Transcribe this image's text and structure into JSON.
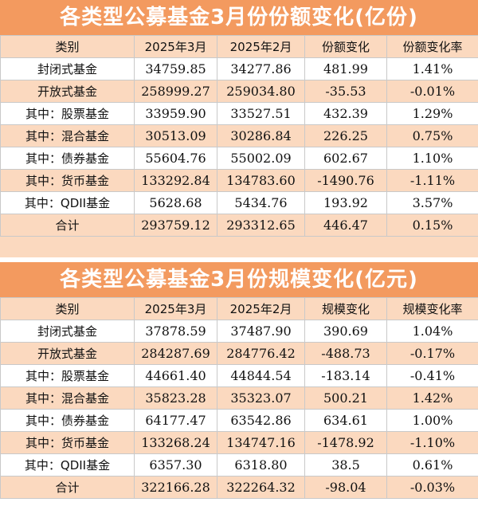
{
  "share": {
    "title": "各类型公募基金3月份份额变化(亿份)",
    "headers": [
      "类别",
      "2025年3月",
      "2025年2月",
      "份额变化",
      "份额变化率"
    ],
    "rows": [
      [
        "封闭式基金",
        "34759.85",
        "34277.86",
        "481.99",
        "1.41%"
      ],
      [
        "开放式基金",
        "258999.27",
        "259034.80",
        "-35.53",
        "-0.01%"
      ],
      [
        "其中：股票基金",
        "33959.90",
        "33527.51",
        "432.39",
        "1.29%"
      ],
      [
        "其中：混合基金",
        "30513.09",
        "30286.84",
        "226.25",
        "0.75%"
      ],
      [
        "其中：债券基金",
        "55604.76",
        "55002.09",
        "602.67",
        "1.10%"
      ],
      [
        "其中：货币基金",
        "133292.84",
        "134783.60",
        "-1490.76",
        "-1.11%"
      ],
      [
        "其中：QDII基金",
        "5628.68",
        "5434.76",
        "193.92",
        "3.57%"
      ],
      [
        "合计",
        "293759.12",
        "293312.65",
        "446.47",
        "0.15%"
      ]
    ]
  },
  "scale": {
    "title": "各类型公募基金3月份规模变化(亿元)",
    "headers": [
      "类别",
      "2025年3月",
      "2025年2月",
      "规模变化",
      "规模变化率"
    ],
    "rows": [
      [
        "封闭式基金",
        "37878.59",
        "37487.90",
        "390.69",
        "1.04%"
      ],
      [
        "开放式基金",
        "284287.69",
        "284776.42",
        "-488.73",
        "-0.17%"
      ],
      [
        "其中：股票基金",
        "44661.40",
        "44844.54",
        "-183.14",
        "-0.41%"
      ],
      [
        "其中：混合基金",
        "35823.28",
        "35323.07",
        "500.21",
        "1.42%"
      ],
      [
        "其中：债券基金",
        "64177.47",
        "63542.86",
        "634.61",
        "1.00%"
      ],
      [
        "其中：货币基金",
        "133268.24",
        "134747.16",
        "-1478.92",
        "-1.10%"
      ],
      [
        "其中：QDII基金",
        "6357.30",
        "6318.80",
        "38.5",
        "0.61%"
      ],
      [
        "合计",
        "322166.28",
        "322264.32",
        "-98.04",
        "-0.03%"
      ]
    ]
  }
}
